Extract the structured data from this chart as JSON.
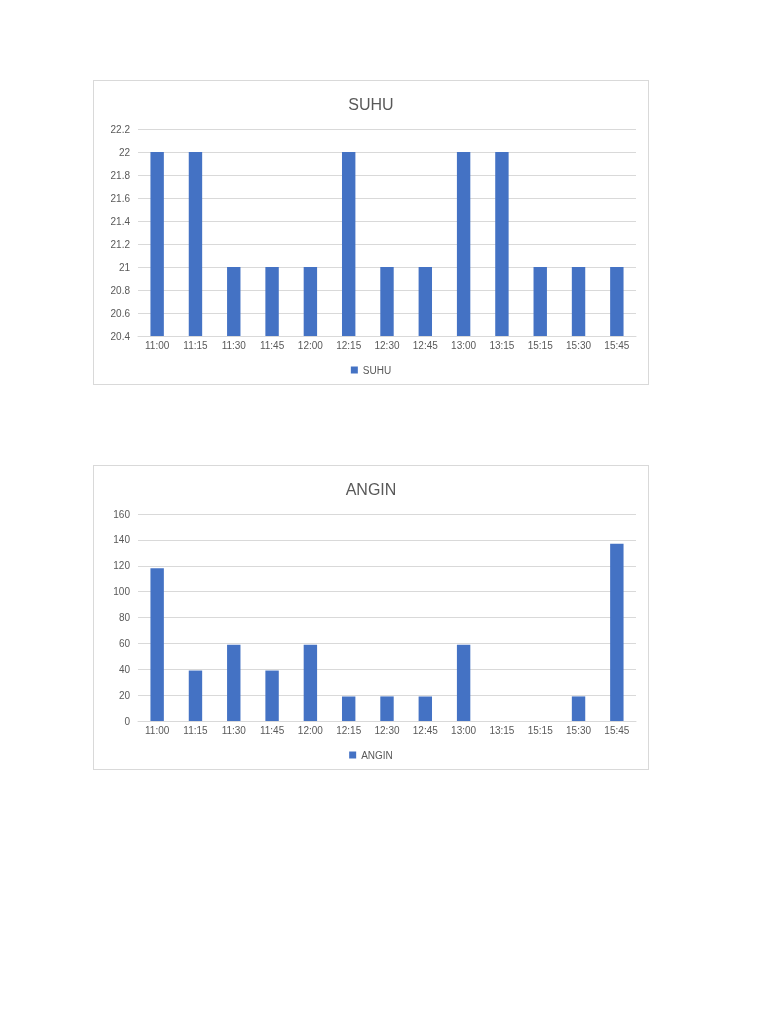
{
  "chart_data": [
    {
      "type": "bar",
      "title": "SUHU",
      "categories": [
        "11:00",
        "11:15",
        "11:30",
        "11:45",
        "12:00",
        "12:15",
        "12:30",
        "12:45",
        "13:00",
        "13:15",
        "15:15",
        "15:30",
        "15:45"
      ],
      "series": [
        {
          "name": "SUHU",
          "color": "#4472c4",
          "values": [
            22,
            22,
            21,
            21,
            21,
            22,
            21,
            21,
            22,
            22,
            21,
            21,
            21
          ]
        }
      ],
      "ylim": [
        20.4,
        22.2
      ],
      "yticks": [
        20.4,
        20.6,
        20.8,
        21,
        21.2,
        21.4,
        21.6,
        21.8,
        22,
        22.2
      ],
      "grid": "y",
      "legend": "bottom"
    },
    {
      "type": "bar",
      "title": "ANGIN",
      "categories": [
        "11:00",
        "11:15",
        "11:30",
        "11:45",
        "12:00",
        "12:15",
        "12:30",
        "12:45",
        "13:00",
        "13:15",
        "15:15",
        "15:30",
        "15:45"
      ],
      "series": [
        {
          "name": "ANGIN",
          "color": "#4472c4",
          "values": [
            118,
            39,
            59,
            39,
            59,
            19,
            19,
            19,
            59,
            0,
            0,
            19,
            137
          ]
        }
      ],
      "ylim": [
        0,
        160
      ],
      "yticks": [
        0,
        20,
        40,
        60,
        80,
        100,
        120,
        140,
        160
      ],
      "grid": "y",
      "legend": "bottom"
    }
  ]
}
